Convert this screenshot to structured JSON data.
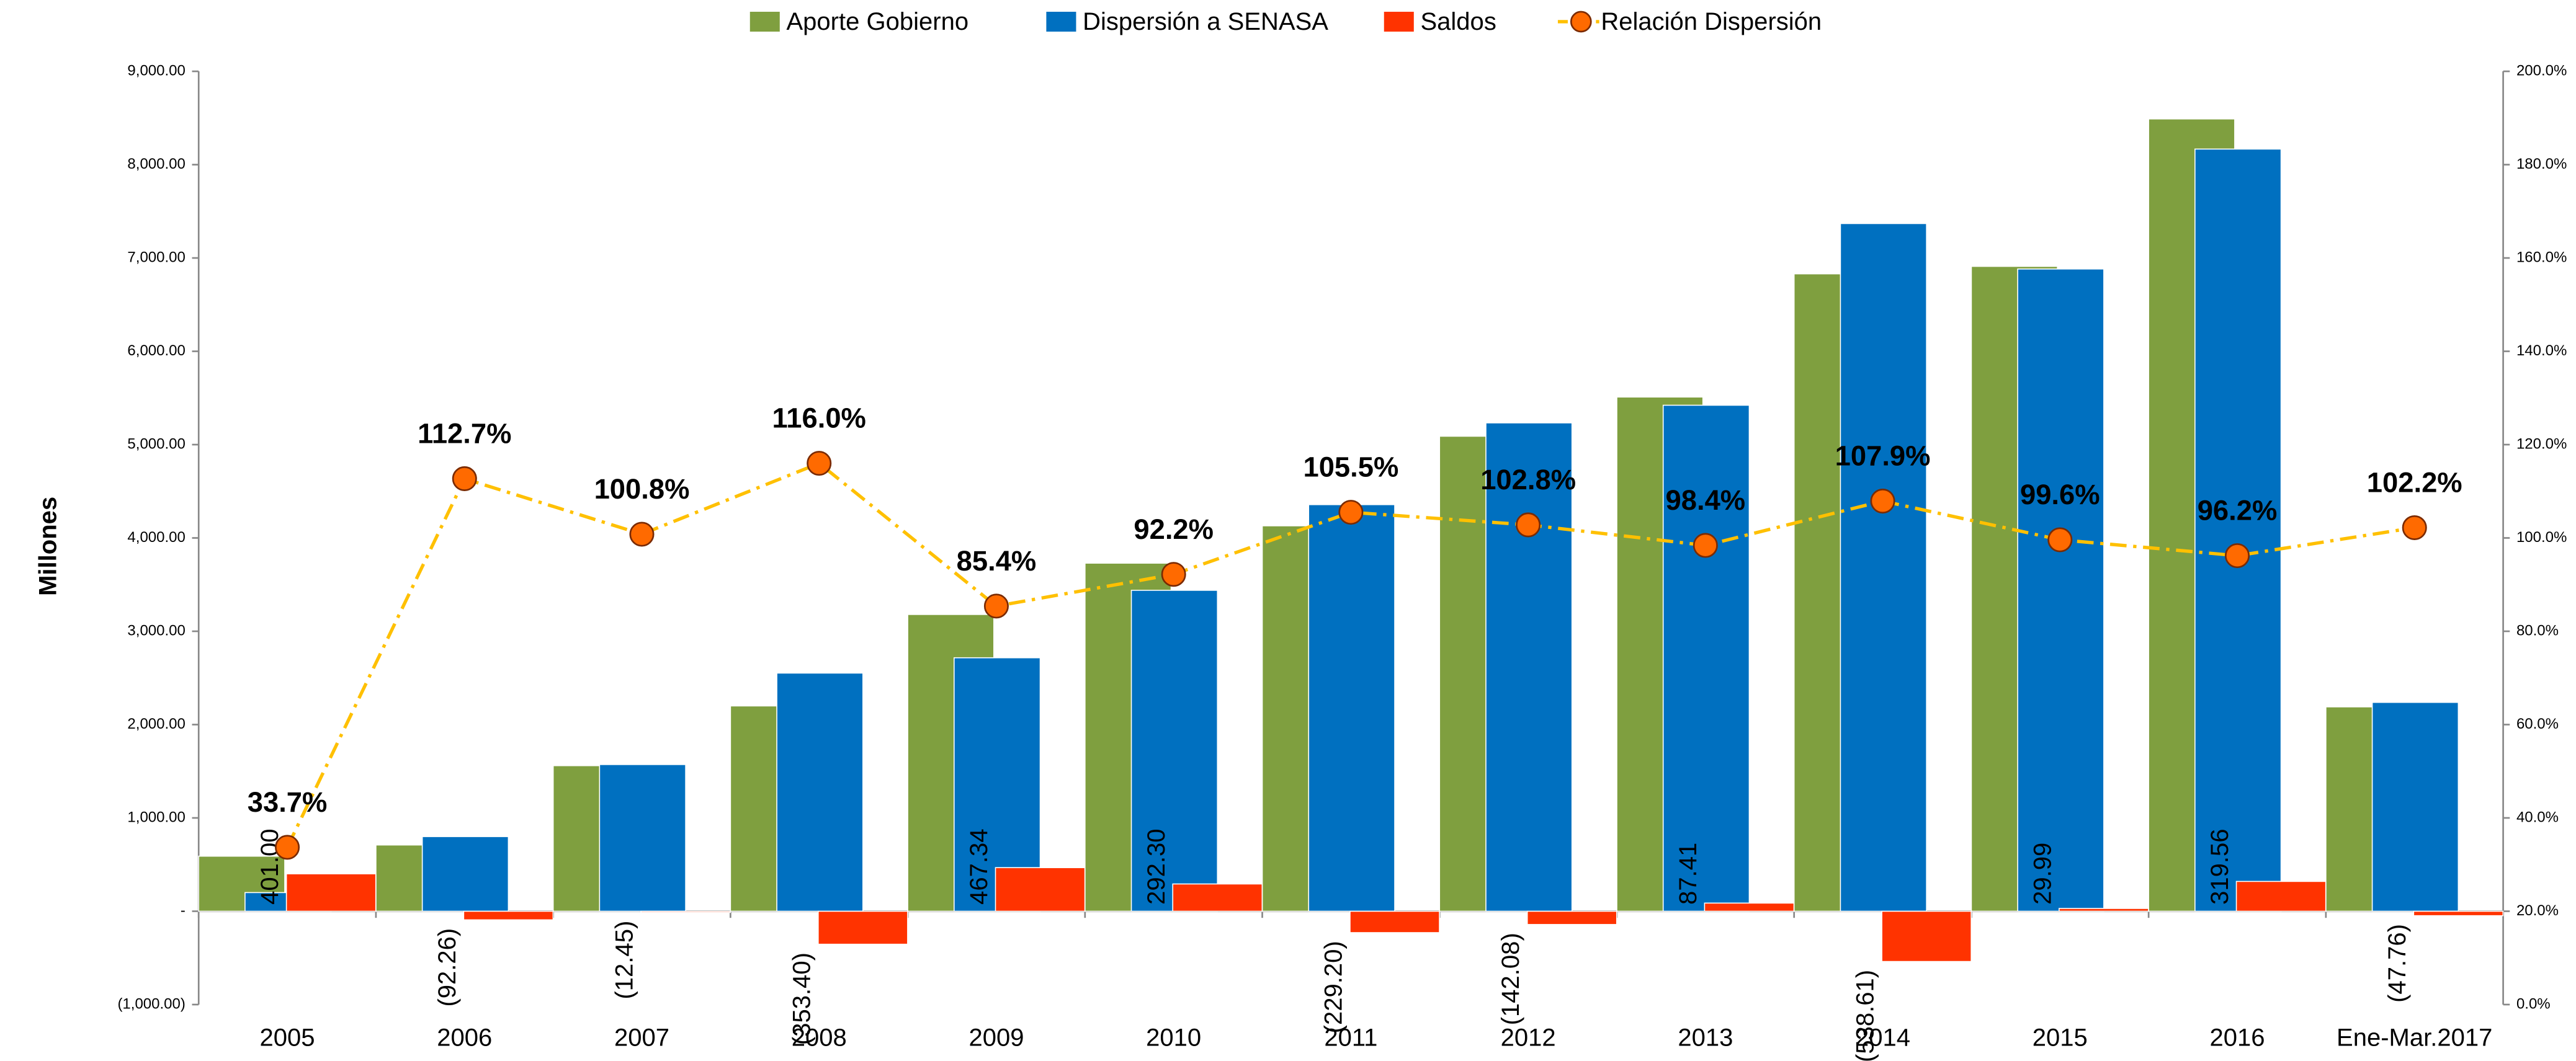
{
  "chart_data": {
    "type": "bar",
    "y_label": "Millones",
    "categories": [
      "2005",
      "2006",
      "2007",
      "2008",
      "2009",
      "2010",
      "2011",
      "2012",
      "2013",
      "2014",
      "2015",
      "2016",
      "Ene-Mar.2017"
    ],
    "series": [
      {
        "name": "Aporte Gobierno",
        "color": "#7f9f3f",
        "type": "bar",
        "values": [
          590,
          710,
          1560,
          2200,
          3180,
          3730,
          4130,
          5090,
          5510,
          6830,
          6910,
          8490,
          2190
        ]
      },
      {
        "name": "Dispersión a SENASA",
        "color": "#0070c0",
        "type": "bar",
        "values": [
          200,
          800,
          1572,
          2552,
          2716,
          3439,
          4357,
          5233,
          5422,
          7369,
          6882,
          8167,
          2238
        ]
      },
      {
        "name": "Saldos",
        "color": "#ff3300",
        "type": "bar",
        "values": [
          401.0,
          -92.26,
          -12.45,
          -353.4,
          467.34,
          292.3,
          -229.2,
          -142.08,
          87.41,
          -538.61,
          29.99,
          319.56,
          -47.76
        ],
        "value_labels": [
          "401.00",
          "(92.26)",
          "(12.45)",
          "(353.40)",
          "467.34",
          "292.30",
          "(229.20)",
          "(142.08)",
          "87.41",
          "(538.61)",
          "29.99",
          "319.56",
          "(47.76)"
        ]
      },
      {
        "name": "Relación Dispersión",
        "color": "#ffc000",
        "type": "line",
        "axis": "y2",
        "values": [
          33.7,
          112.7,
          100.8,
          116.0,
          85.4,
          92.2,
          105.5,
          102.8,
          98.4,
          107.9,
          99.6,
          96.2,
          102.2
        ],
        "value_labels": [
          "33.7%",
          "112.7%",
          "100.8%",
          "116.0%",
          "85.4%",
          "92.2%",
          "105.5%",
          "102.8%",
          "98.4%",
          "107.9%",
          "99.6%",
          "96.2%",
          "102.2%"
        ]
      }
    ],
    "ylim": [
      -1000,
      9000
    ],
    "yticks": [
      {
        "value": -1000,
        "label": "(1,000.00)"
      },
      {
        "value": 0,
        "label": "-"
      },
      {
        "value": 1000,
        "label": "1,000.00"
      },
      {
        "value": 2000,
        "label": "2,000.00"
      },
      {
        "value": 3000,
        "label": "3,000.00"
      },
      {
        "value": 4000,
        "label": "4,000.00"
      },
      {
        "value": 5000,
        "label": "5,000.00"
      },
      {
        "value": 6000,
        "label": "6,000.00"
      },
      {
        "value": 7000,
        "label": "7,000.00"
      },
      {
        "value": 8000,
        "label": "8,000.00"
      },
      {
        "value": 9000,
        "label": "9,000.00"
      }
    ],
    "y2lim": [
      0,
      200
    ],
    "y2ticks": [
      {
        "value": 0,
        "label": "0.0%"
      },
      {
        "value": 20,
        "label": "20.0%"
      },
      {
        "value": 40,
        "label": "40.0%"
      },
      {
        "value": 60,
        "label": "60.0%"
      },
      {
        "value": 80,
        "label": "80.0%"
      },
      {
        "value": 100,
        "label": "100.0%"
      },
      {
        "value": 120,
        "label": "120.0%"
      },
      {
        "value": 140,
        "label": "140.0%"
      },
      {
        "value": 160,
        "label": "160.0%"
      },
      {
        "value": 180,
        "label": "180.0%"
      },
      {
        "value": 200,
        "label": "200.0%"
      }
    ],
    "legend": "top"
  }
}
